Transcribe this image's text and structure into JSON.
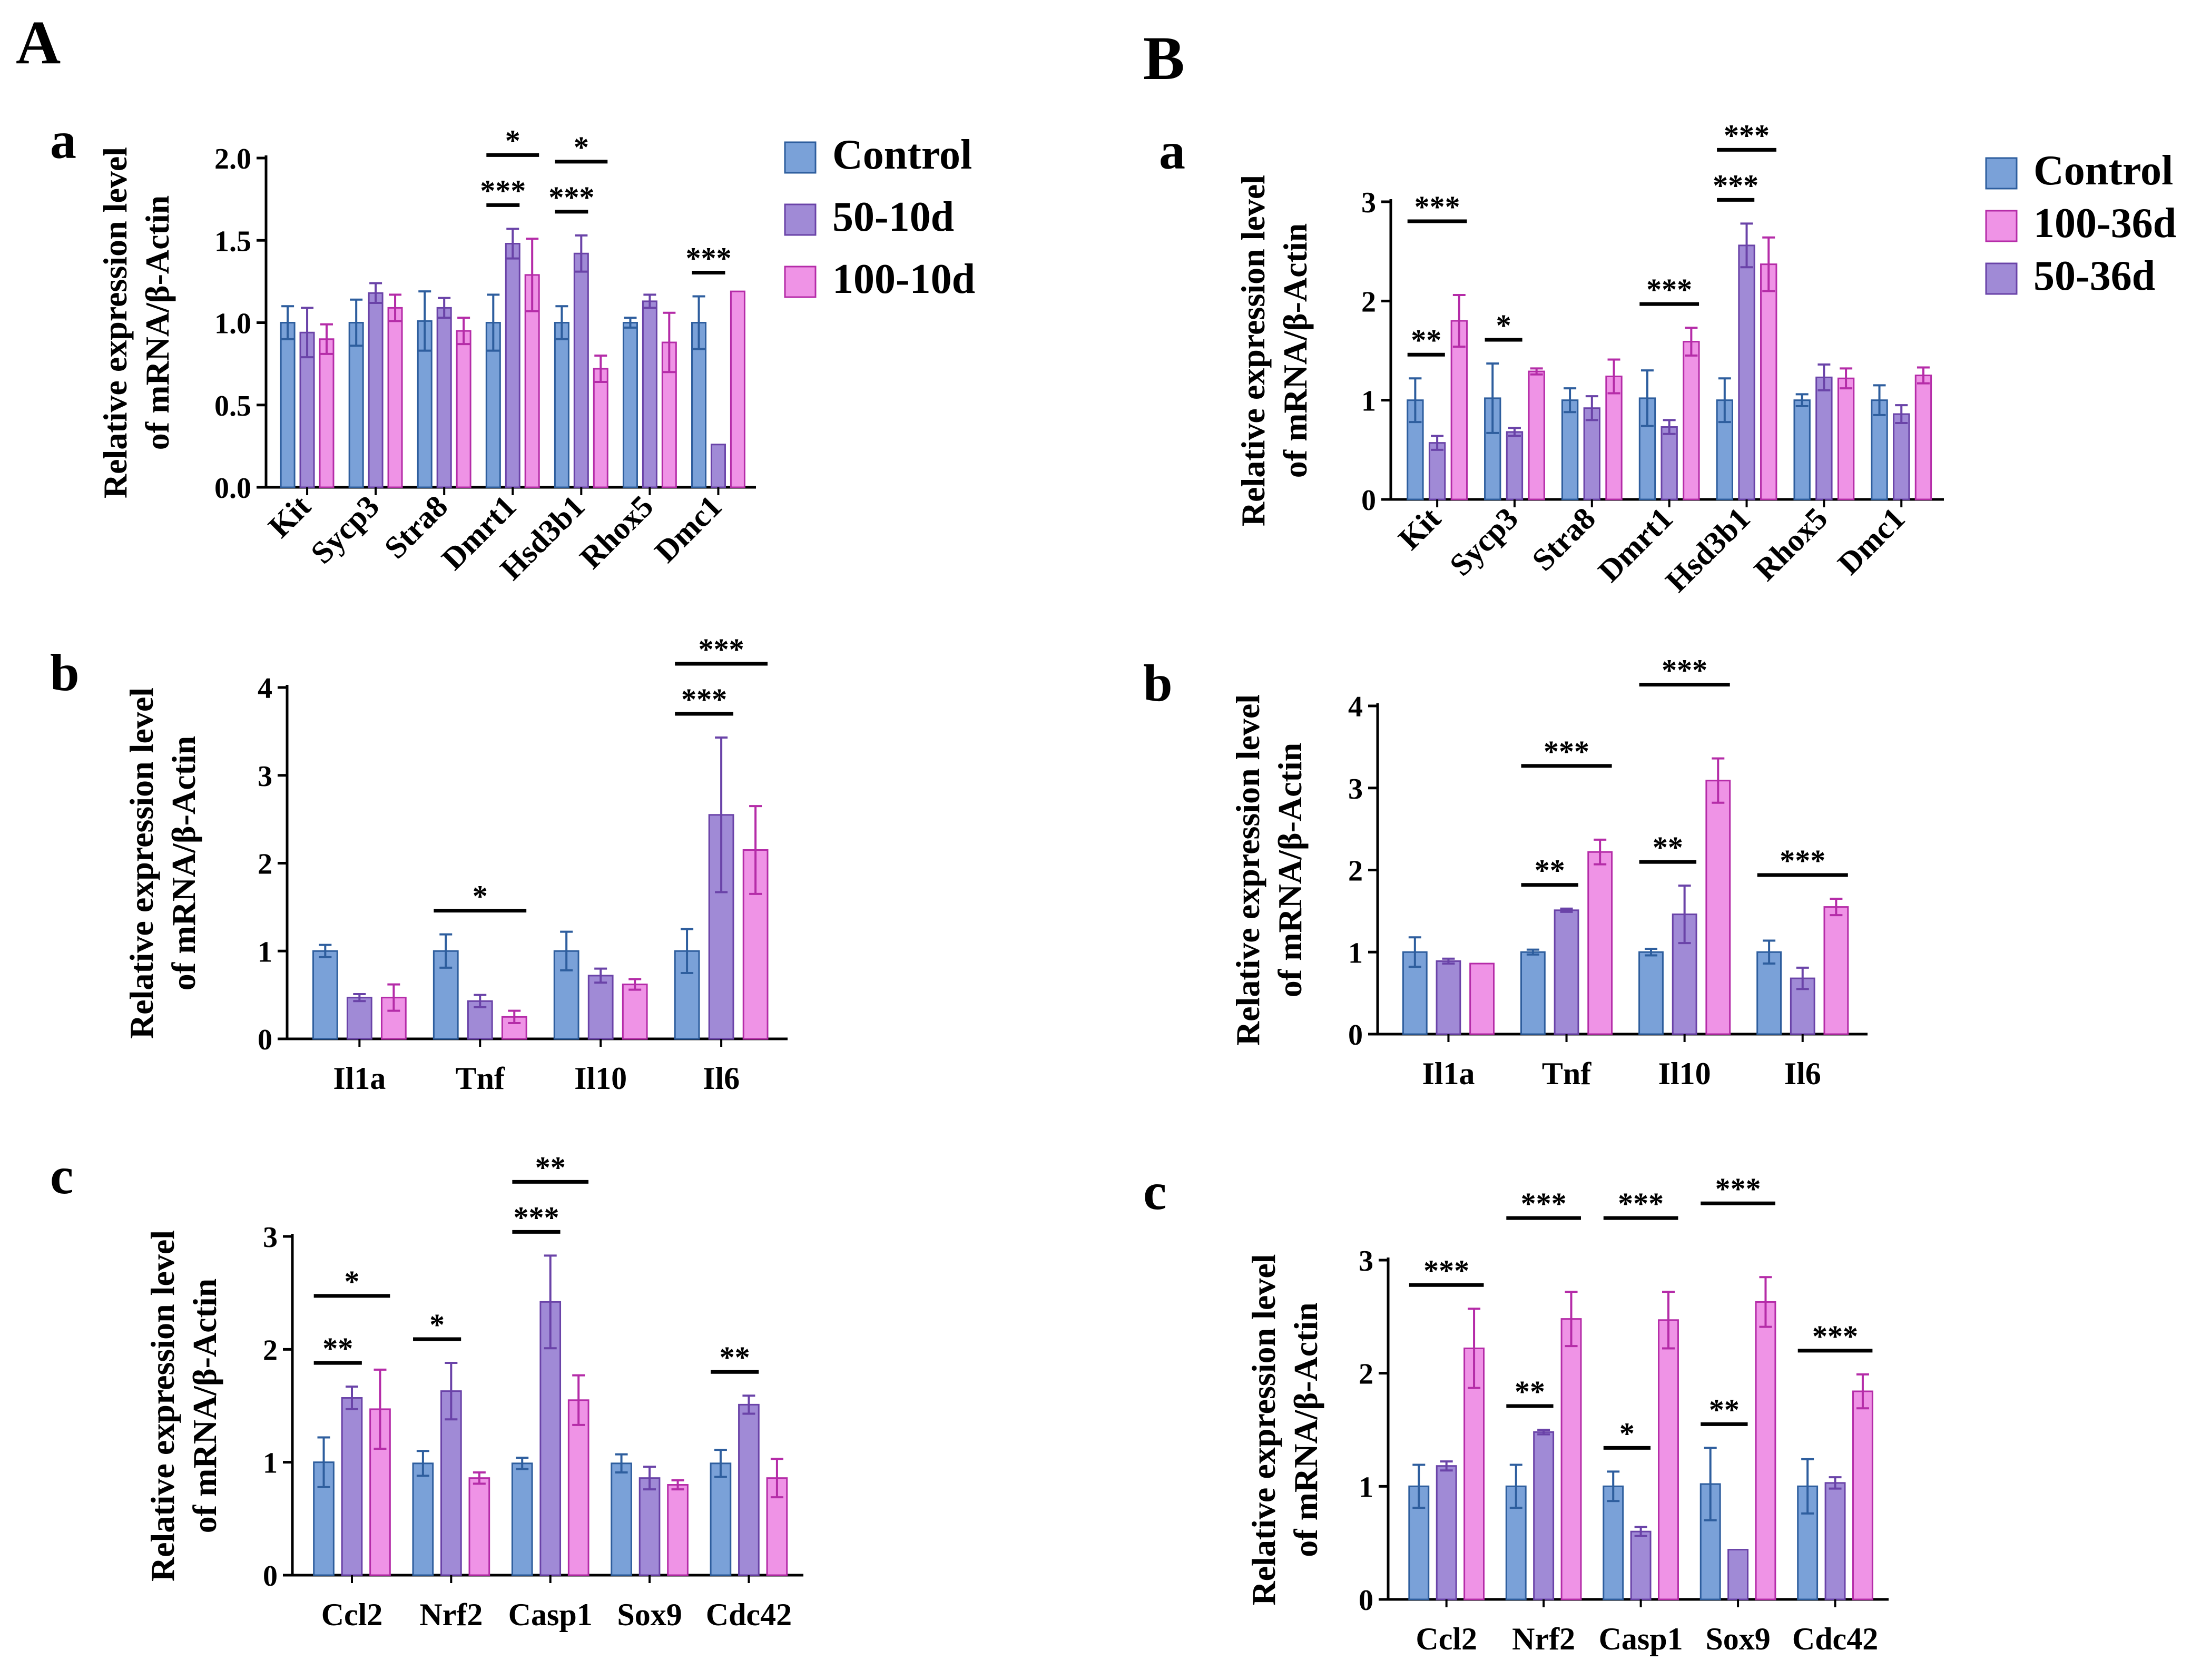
{
  "figure": {
    "panel_A_label": "A",
    "panel_B_label": "B",
    "y_axis_title_line1": "Relative expression level",
    "y_axis_title_line2": "of mRNA/β-Actin"
  },
  "colors": {
    "control": "#7aa1d8",
    "control_edge": "#2e5e9e",
    "purple": "#a08ad6",
    "purple_edge": "#6a43a8",
    "pink": "#ef93e6",
    "pink_edge": "#b52ca8"
  },
  "chart_data": [
    {
      "id": "A-a",
      "panel": "A",
      "sub": "a",
      "type": "bar",
      "categories": [
        "Kit",
        "Sycp3",
        "Stra8",
        "Dmrt1",
        "Hsd3b1",
        "Rhox5",
        "Dmc1"
      ],
      "series": [
        {
          "name": "Control",
          "color_key": "control",
          "values": [
            1.0,
            1.0,
            1.01,
            1.0,
            1.0,
            1.0,
            1.0
          ],
          "errors": [
            0.1,
            0.14,
            0.18,
            0.17,
            0.1,
            0.03,
            0.16
          ]
        },
        {
          "name": "50-10d",
          "color_key": "purple",
          "values": [
            0.94,
            1.18,
            1.09,
            1.48,
            1.42,
            1.13,
            0.26
          ],
          "errors": [
            0.15,
            0.06,
            0.06,
            0.09,
            0.11,
            0.04,
            0.0
          ]
        },
        {
          "name": "100-10d",
          "color_key": "pink",
          "values": [
            0.9,
            1.09,
            0.95,
            1.29,
            0.72,
            0.88,
            1.19
          ],
          "errors": [
            0.09,
            0.08,
            0.08,
            0.22,
            0.08,
            0.18,
            0.0
          ]
        }
      ],
      "ylim": [
        0,
        2.0
      ],
      "yticks": [
        "0.0",
        "0.5",
        "1.0",
        "1.5",
        "2.0"
      ],
      "ytick_values": [
        0,
        0.5,
        1.0,
        1.5,
        2.0
      ],
      "rotate_labels": true,
      "legend": [
        "Control",
        "50-10d",
        "100-10d"
      ],
      "annotations": [
        {
          "cat": 3,
          "from": 0,
          "to": 1,
          "label": "***",
          "level": 0
        },
        {
          "cat": 3,
          "from": 0,
          "to": 2,
          "label": "*",
          "level": 1
        },
        {
          "cat": 4,
          "from": 0,
          "to": 1,
          "label": "***",
          "level": 0
        },
        {
          "cat": 4,
          "from": 0,
          "to": 2,
          "label": "*",
          "level": 1
        },
        {
          "cat": 6,
          "from": 0,
          "to": 1,
          "label": "***",
          "level": 0
        }
      ]
    },
    {
      "id": "A-b",
      "panel": "A",
      "sub": "b",
      "type": "bar",
      "categories": [
        "Il1a",
        "Tnf",
        "Il10",
        "Il6"
      ],
      "series": [
        {
          "name": "Control",
          "color_key": "control",
          "values": [
            1.0,
            1.0,
            1.0,
            1.0
          ],
          "errors": [
            0.07,
            0.19,
            0.22,
            0.25
          ]
        },
        {
          "name": "50-10d",
          "color_key": "purple",
          "values": [
            0.47,
            0.43,
            0.72,
            2.55
          ],
          "errors": [
            0.04,
            0.07,
            0.08,
            0.88
          ]
        },
        {
          "name": "100-10d",
          "color_key": "pink",
          "values": [
            0.47,
            0.25,
            0.62,
            2.15
          ],
          "errors": [
            0.15,
            0.07,
            0.06,
            0.5
          ]
        }
      ],
      "ylim": [
        0,
        4
      ],
      "yticks": [
        "0",
        "1",
        "2",
        "3",
        "4"
      ],
      "ytick_values": [
        0,
        1,
        2,
        3,
        4
      ],
      "rotate_labels": false,
      "annotations": [
        {
          "cat": 1,
          "from": 0,
          "to": 2,
          "label": "*",
          "level": 0
        },
        {
          "cat": 3,
          "from": 0,
          "to": 1,
          "label": "***",
          "level": 0
        },
        {
          "cat": 3,
          "from": 0,
          "to": 2,
          "label": "***",
          "level": 1
        }
      ]
    },
    {
      "id": "A-c",
      "panel": "A",
      "sub": "c",
      "type": "bar",
      "categories": [
        "Ccl2",
        "Nrf2",
        "Casp1",
        "Sox9",
        "Cdc42"
      ],
      "series": [
        {
          "name": "Control",
          "color_key": "control",
          "values": [
            1.0,
            0.99,
            0.99,
            0.99,
            0.99
          ],
          "errors": [
            0.22,
            0.11,
            0.05,
            0.08,
            0.12
          ]
        },
        {
          "name": "50-10d",
          "color_key": "purple",
          "values": [
            1.57,
            1.63,
            2.42,
            0.86,
            1.51
          ],
          "errors": [
            0.1,
            0.25,
            0.41,
            0.1,
            0.08
          ]
        },
        {
          "name": "100-10d",
          "color_key": "pink",
          "values": [
            1.47,
            0.86,
            1.55,
            0.8,
            0.86
          ],
          "errors": [
            0.35,
            0.05,
            0.22,
            0.04,
            0.17
          ]
        }
      ],
      "ylim": [
        0,
        3
      ],
      "yticks": [
        "0",
        "1",
        "2",
        "3"
      ],
      "ytick_values": [
        0,
        1,
        2,
        3
      ],
      "rotate_labels": false,
      "annotations": [
        {
          "cat": 0,
          "from": 0,
          "to": 1,
          "label": "**",
          "level": 0
        },
        {
          "cat": 0,
          "from": 0,
          "to": 2,
          "label": "*",
          "level": 1
        },
        {
          "cat": 1,
          "from": 0,
          "to": 1,
          "label": "*",
          "level": 0
        },
        {
          "cat": 2,
          "from": 0,
          "to": 1,
          "label": "***",
          "level": 0
        },
        {
          "cat": 2,
          "from": 0,
          "to": 2,
          "label": "**",
          "level": 1
        },
        {
          "cat": 4,
          "from": 0,
          "to": 1,
          "label": "**",
          "level": 0
        }
      ]
    },
    {
      "id": "B-a",
      "panel": "B",
      "sub": "a",
      "type": "bar",
      "categories": [
        "Kit",
        "Sycp3",
        "Stra8",
        "Dmrt1",
        "Hsd3b1",
        "Rhox5",
        "Dmc1"
      ],
      "series": [
        {
          "name": "Control",
          "color_key": "control",
          "values": [
            1.0,
            1.02,
            1.0,
            1.02,
            1.0,
            1.0,
            1.0
          ],
          "errors": [
            0.22,
            0.35,
            0.12,
            0.28,
            0.22,
            0.06,
            0.15
          ]
        },
        {
          "name": "50-36d",
          "color_key": "purple",
          "values": [
            0.57,
            0.68,
            0.92,
            0.73,
            2.56,
            1.23,
            0.86
          ],
          " errors": [],
          "errors": [
            0.07,
            0.04,
            0.12,
            0.07,
            0.22,
            0.13,
            0.09
          ]
        },
        {
          "name": "100-36d",
          "color_key": "pink",
          "values": [
            1.8,
            1.29,
            1.24,
            1.59,
            2.37,
            1.22,
            1.25
          ],
          "errors": [
            0.26,
            0.03,
            0.17,
            0.14,
            0.27,
            0.1,
            0.08
          ]
        }
      ],
      "ylim": [
        0,
        3
      ],
      "yticks": [
        "0",
        "1",
        "2",
        "3"
      ],
      "ytick_values": [
        0,
        1,
        2,
        3
      ],
      "rotate_labels": true,
      "legend": [
        "Control",
        "100-36d",
        "50-36d"
      ],
      "annotations": [
        {
          "cat": 0,
          "from": 0,
          "to": 1,
          "label": "**",
          "level": 0
        },
        {
          "cat": 0,
          "from": 0,
          "to": 2,
          "label": "***",
          "level": 1
        },
        {
          "cat": 1,
          "from": 0,
          "to": 1,
          "label": "*",
          "level": 0
        },
        {
          "cat": 3,
          "from": 0,
          "to": 2,
          "label": "***",
          "level": 0
        },
        {
          "cat": 4,
          "from": 0,
          "to": 1,
          "label": "***",
          "level": 0
        },
        {
          "cat": 4,
          "from": 0,
          "to": 2,
          "label": "***",
          "level": 1
        }
      ]
    },
    {
      "id": "B-b",
      "panel": "B",
      "sub": "b",
      "type": "bar",
      "categories": [
        "Il1a",
        "Tnf",
        "Il10",
        "Il6"
      ],
      "series": [
        {
          "name": "Control",
          "color_key": "control",
          "values": [
            1.0,
            1.0,
            1.0,
            1.0
          ],
          "errors": [
            0.18,
            0.03,
            0.04,
            0.14
          ]
        },
        {
          "name": "50-36d",
          "color_key": "purple",
          "values": [
            0.89,
            1.51,
            1.46,
            0.68
          ],
          "errors": [
            0.03,
            0.02,
            0.35,
            0.13
          ]
        },
        {
          "name": "100-36d",
          "color_key": "pink",
          "values": [
            0.86,
            2.22,
            3.09,
            1.55
          ],
          "errors": [
            0.0,
            0.15,
            0.27,
            0.1
          ]
        }
      ],
      "ylim": [
        0,
        4
      ],
      "yticks": [
        "0",
        "1",
        "2",
        "3",
        "4"
      ],
      "ytick_values": [
        0,
        1,
        2,
        3,
        4
      ],
      "rotate_labels": false,
      "annotations": [
        {
          "cat": 1,
          "from": 0,
          "to": 1,
          "label": "**",
          "level": 0
        },
        {
          "cat": 1,
          "from": 0,
          "to": 2,
          "label": "***",
          "level": 1
        },
        {
          "cat": 2,
          "from": 0,
          "to": 1,
          "label": "**",
          "level": 0
        },
        {
          "cat": 2,
          "from": 0,
          "to": 2,
          "label": "***",
          "level": 1
        },
        {
          "cat": 3,
          "from": 0,
          "to": 2,
          "label": "***",
          "level": 0
        }
      ]
    },
    {
      "id": "B-c",
      "panel": "B",
      "sub": "c",
      "type": "bar",
      "categories": [
        "Ccl2",
        "Nrf2",
        "Casp1",
        "Sox9",
        "Cdc42"
      ],
      "series": [
        {
          "name": "Control",
          "color_key": "control",
          "values": [
            1.0,
            1.0,
            1.0,
            1.02,
            1.0
          ],
          "errors": [
            0.19,
            0.19,
            0.13,
            0.32,
            0.24
          ]
        },
        {
          "name": "50-36d",
          "color_key": "purple",
          "values": [
            1.18,
            1.48,
            0.6,
            0.44,
            1.03
          ],
          "errors": [
            0.04,
            0.02,
            0.04,
            0.0,
            0.05
          ]
        },
        {
          "name": "100-36d",
          "color_key": "pink",
          "values": [
            2.22,
            2.48,
            2.47,
            2.63,
            1.84
          ],
          "errors": [
            0.35,
            0.24,
            0.25,
            0.22,
            0.15
          ]
        }
      ],
      "ylim": [
        0,
        3
      ],
      "yticks": [
        "0",
        "1",
        "2",
        "3"
      ],
      "ytick_values": [
        0,
        1,
        2,
        3
      ],
      "rotate_labels": false,
      "annotations": [
        {
          "cat": 0,
          "from": 0,
          "to": 2,
          "label": "***",
          "level": 0
        },
        {
          "cat": 1,
          "from": 0,
          "to": 1,
          "label": "**",
          "level": 0
        },
        {
          "cat": 1,
          "from": 0,
          "to": 2,
          "label": "***",
          "level": 1
        },
        {
          "cat": 2,
          "from": 0,
          "to": 1,
          "label": "*",
          "level": 0
        },
        {
          "cat": 2,
          "from": 0,
          "to": 2,
          "label": "***",
          "level": 1
        },
        {
          "cat": 3,
          "from": 0,
          "to": 1,
          "label": "**",
          "level": 0
        },
        {
          "cat": 3,
          "from": 0,
          "to": 2,
          "label": "***",
          "level": 1
        },
        {
          "cat": 4,
          "from": 0,
          "to": 2,
          "label": "***",
          "level": 0
        }
      ]
    }
  ]
}
